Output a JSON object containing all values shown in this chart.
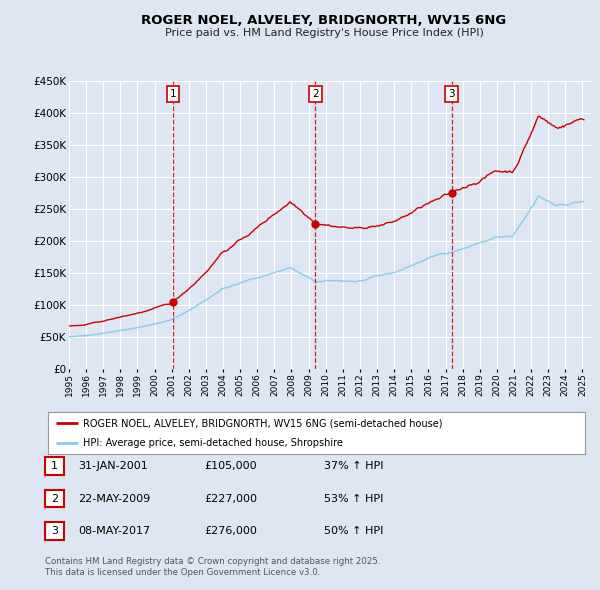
{
  "title": "ROGER NOEL, ALVELEY, BRIDGNORTH, WV15 6NG",
  "subtitle": "Price paid vs. HM Land Registry's House Price Index (HPI)",
  "bg_color": "#dde6f2",
  "plot_bg_color": "#dde6f2",
  "red_color": "#cc0000",
  "blue_color": "#87CEEB",
  "grid_color": "#ffffff",
  "ylim": [
    0,
    450000
  ],
  "yticks": [
    0,
    50000,
    100000,
    150000,
    200000,
    250000,
    300000,
    350000,
    400000,
    450000
  ],
  "ytick_labels": [
    "£0",
    "£50K",
    "£100K",
    "£150K",
    "£200K",
    "£250K",
    "£300K",
    "£350K",
    "£400K",
    "£450K"
  ],
  "xlim_start": 1995.0,
  "xlim_end": 2025.5,
  "xtick_years": [
    1995,
    1996,
    1997,
    1998,
    1999,
    2000,
    2001,
    2002,
    2003,
    2004,
    2005,
    2006,
    2007,
    2008,
    2009,
    2010,
    2011,
    2012,
    2013,
    2014,
    2015,
    2016,
    2017,
    2018,
    2019,
    2020,
    2021,
    2022,
    2023,
    2024,
    2025
  ],
  "sale1_x": 2001.08,
  "sale1_y": 105000,
  "sale2_x": 2009.38,
  "sale2_y": 227000,
  "sale3_x": 2017.35,
  "sale3_y": 276000,
  "vline_color": "#cc0000",
  "marker_color": "#cc0000",
  "legend_label_red": "ROGER NOEL, ALVELEY, BRIDGNORTH, WV15 6NG (semi-detached house)",
  "legend_label_blue": "HPI: Average price, semi-detached house, Shropshire",
  "table_rows": [
    {
      "num": "1",
      "date": "31-JAN-2001",
      "price": "£105,000",
      "pct": "37% ↑ HPI"
    },
    {
      "num": "2",
      "date": "22-MAY-2009",
      "price": "£227,000",
      "pct": "53% ↑ HPI"
    },
    {
      "num": "3",
      "date": "08-MAY-2017",
      "price": "£276,000",
      "pct": "50% ↑ HPI"
    }
  ],
  "footnote1": "Contains HM Land Registry data © Crown copyright and database right 2025.",
  "footnote2": "This data is licensed under the Open Government Licence v3.0."
}
